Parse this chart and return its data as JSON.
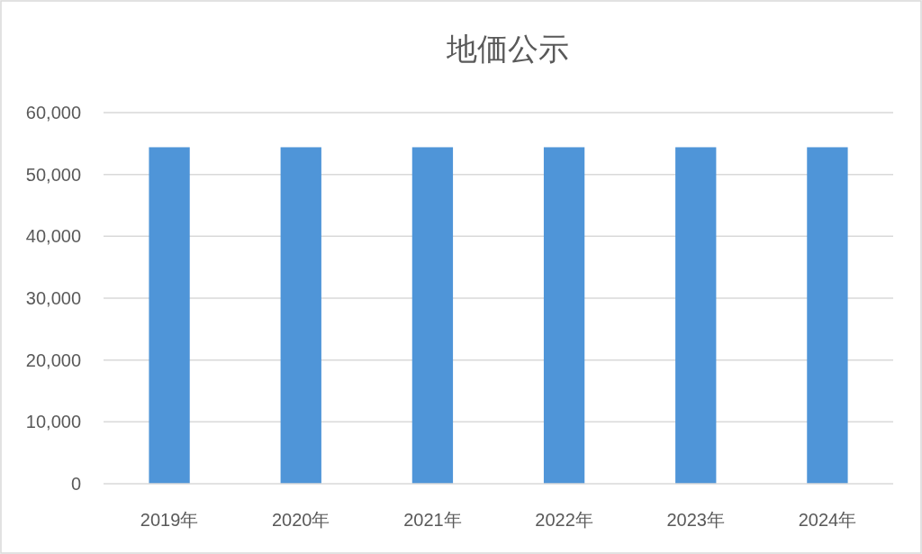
{
  "chart_data": {
    "type": "bar",
    "title": "地価公示",
    "categories": [
      "2019年",
      "2020年",
      "2021年",
      "2022年",
      "2023年",
      "2024年"
    ],
    "values": [
      54400,
      54400,
      54400,
      54400,
      54400,
      54400
    ],
    "color": "#4f95d8",
    "ylim": [
      0,
      60000
    ],
    "yticks": [
      {
        "value": 0,
        "label": "0"
      },
      {
        "value": 10000,
        "label": "10,000"
      },
      {
        "value": 20000,
        "label": "20,000"
      },
      {
        "value": 30000,
        "label": "30,000"
      },
      {
        "value": 40000,
        "label": "40,000"
      },
      {
        "value": 50000,
        "label": "50,000"
      },
      {
        "value": 60000,
        "label": "60,000"
      }
    ],
    "grid": "y"
  }
}
